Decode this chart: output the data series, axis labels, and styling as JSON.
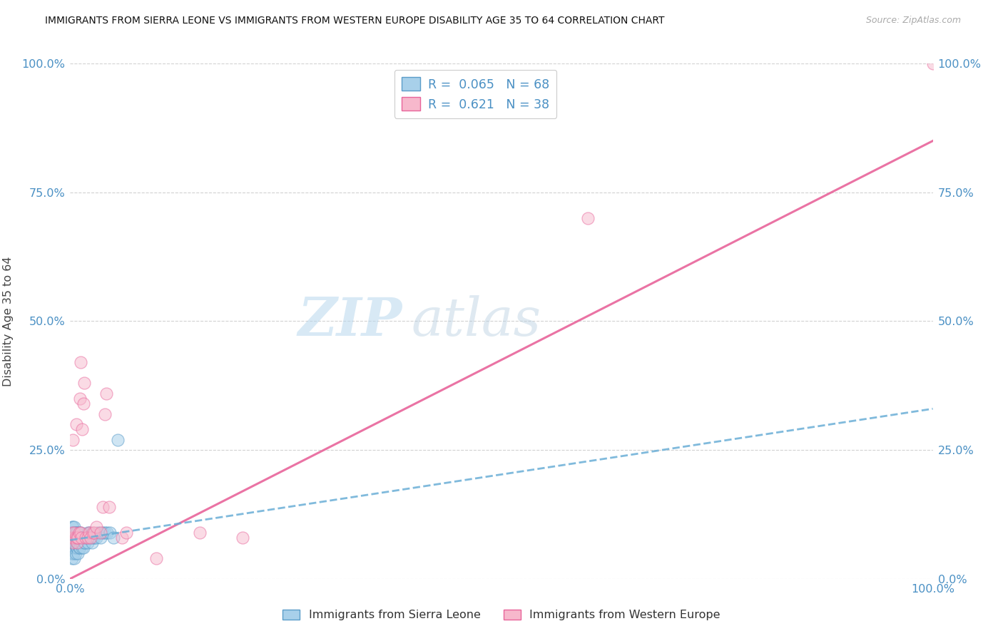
{
  "title": "IMMIGRANTS FROM SIERRA LEONE VS IMMIGRANTS FROM WESTERN EUROPE DISABILITY AGE 35 TO 64 CORRELATION CHART",
  "source": "Source: ZipAtlas.com",
  "ylabel": "Disability Age 35 to 64",
  "xlim": [
    0.0,
    1.0
  ],
  "ylim": [
    0.0,
    1.0
  ],
  "ytick_vals": [
    0.0,
    0.25,
    0.5,
    0.75,
    1.0
  ],
  "ytick_labels": [
    "0.0%",
    "25.0%",
    "50.0%",
    "75.0%",
    "100.0%"
  ],
  "xtick_vals": [
    0.0,
    0.25,
    0.5,
    0.75,
    1.0
  ],
  "xtick_labels": [
    "0.0%",
    "",
    "",
    "",
    "100.0%"
  ],
  "legend_r1": "0.065",
  "legend_n1": "68",
  "legend_r2": "0.621",
  "legend_n2": "38",
  "color_blue": "#a8d0ea",
  "color_blue_edge": "#5b9dc9",
  "color_pink": "#f7b8cc",
  "color_pink_edge": "#e8649a",
  "color_blue_line": "#6aaed6",
  "color_pink_line": "#e8649a",
  "label_sierra": "Immigrants from Sierra Leone",
  "label_western": "Immigrants from Western Europe",
  "sierra_x": [
    0.001,
    0.001,
    0.001,
    0.002,
    0.002,
    0.002,
    0.002,
    0.002,
    0.003,
    0.003,
    0.003,
    0.003,
    0.003,
    0.004,
    0.004,
    0.004,
    0.004,
    0.005,
    0.005,
    0.005,
    0.005,
    0.005,
    0.006,
    0.006,
    0.006,
    0.006,
    0.007,
    0.007,
    0.007,
    0.008,
    0.008,
    0.008,
    0.009,
    0.009,
    0.009,
    0.01,
    0.01,
    0.01,
    0.011,
    0.011,
    0.012,
    0.012,
    0.012,
    0.013,
    0.014,
    0.014,
    0.015,
    0.015,
    0.016,
    0.017,
    0.018,
    0.019,
    0.02,
    0.02,
    0.022,
    0.023,
    0.025,
    0.026,
    0.028,
    0.03,
    0.032,
    0.035,
    0.038,
    0.04,
    0.043,
    0.046,
    0.05,
    0.055
  ],
  "sierra_y": [
    0.05,
    0.07,
    0.09,
    0.04,
    0.06,
    0.07,
    0.08,
    0.1,
    0.05,
    0.06,
    0.07,
    0.09,
    0.1,
    0.05,
    0.07,
    0.08,
    0.09,
    0.04,
    0.06,
    0.07,
    0.08,
    0.1,
    0.05,
    0.07,
    0.08,
    0.09,
    0.06,
    0.08,
    0.09,
    0.06,
    0.07,
    0.09,
    0.05,
    0.07,
    0.08,
    0.06,
    0.07,
    0.09,
    0.06,
    0.08,
    0.07,
    0.08,
    0.09,
    0.07,
    0.06,
    0.08,
    0.06,
    0.08,
    0.07,
    0.07,
    0.08,
    0.08,
    0.07,
    0.09,
    0.08,
    0.09,
    0.07,
    0.08,
    0.08,
    0.08,
    0.09,
    0.08,
    0.09,
    0.09,
    0.09,
    0.09,
    0.08,
    0.27
  ],
  "western_x": [
    0.001,
    0.002,
    0.003,
    0.003,
    0.004,
    0.005,
    0.006,
    0.007,
    0.008,
    0.008,
    0.009,
    0.01,
    0.011,
    0.012,
    0.012,
    0.013,
    0.014,
    0.015,
    0.016,
    0.018,
    0.02,
    0.022,
    0.024,
    0.026,
    0.028,
    0.03,
    0.035,
    0.038,
    0.04,
    0.042,
    0.045,
    0.06,
    0.065,
    0.1,
    0.15,
    0.2,
    0.6,
    1.0
  ],
  "western_y": [
    0.08,
    0.09,
    0.07,
    0.27,
    0.08,
    0.09,
    0.08,
    0.3,
    0.07,
    0.08,
    0.08,
    0.09,
    0.35,
    0.09,
    0.42,
    0.08,
    0.29,
    0.34,
    0.38,
    0.08,
    0.08,
    0.09,
    0.08,
    0.09,
    0.09,
    0.1,
    0.09,
    0.14,
    0.32,
    0.36,
    0.14,
    0.08,
    0.09,
    0.04,
    0.09,
    0.08,
    0.7,
    1.0
  ],
  "pink_line_x0": 0.0,
  "pink_line_y0": 0.0,
  "pink_line_x1": 1.0,
  "pink_line_y1": 0.85,
  "blue_line_x0": 0.0,
  "blue_line_y0": 0.075,
  "blue_line_x1": 1.0,
  "blue_line_y1": 0.33
}
